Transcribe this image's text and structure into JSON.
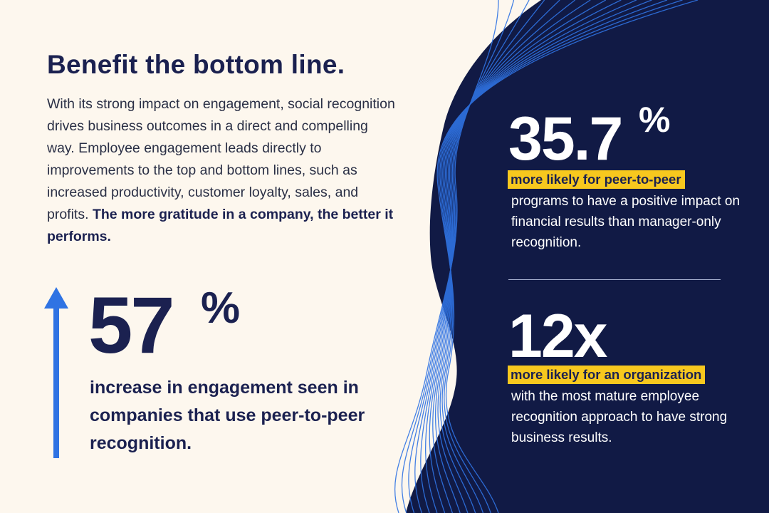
{
  "colors": {
    "background": "#fdf7ee",
    "navy": "#111a45",
    "text_dark": "#1b2150",
    "accent_blue": "#2f73e3",
    "highlight_yellow": "#f7c81e",
    "white": "#ffffff"
  },
  "left": {
    "headline": "Benefit the bottom line.",
    "intro_text": "With its strong impact on engagement, social recognition drives business outcomes in a direct and compelling way. Employee engagement leads directly to improvements to the top and bottom lines, such as increased productivity, customer loyalty, sales, and profits. ",
    "intro_bold": "The more gratitude in a company, the better it performs.",
    "stat_value": "57",
    "stat_unit": "%",
    "stat_caption": "increase in engagement seen in companies that use peer-to-peer recognition.",
    "arrow_icon": "up-arrow-icon"
  },
  "right": {
    "stat1": {
      "value": "35.7",
      "unit": "%",
      "highlight": "more likely for peer-to-peer",
      "description": "programs to have a positive impact on financial results than manager-only recognition."
    },
    "stat2": {
      "value": "12x",
      "highlight": "more likely for an organization",
      "description": "with the most mature employee recognition approach to have strong business results."
    }
  }
}
